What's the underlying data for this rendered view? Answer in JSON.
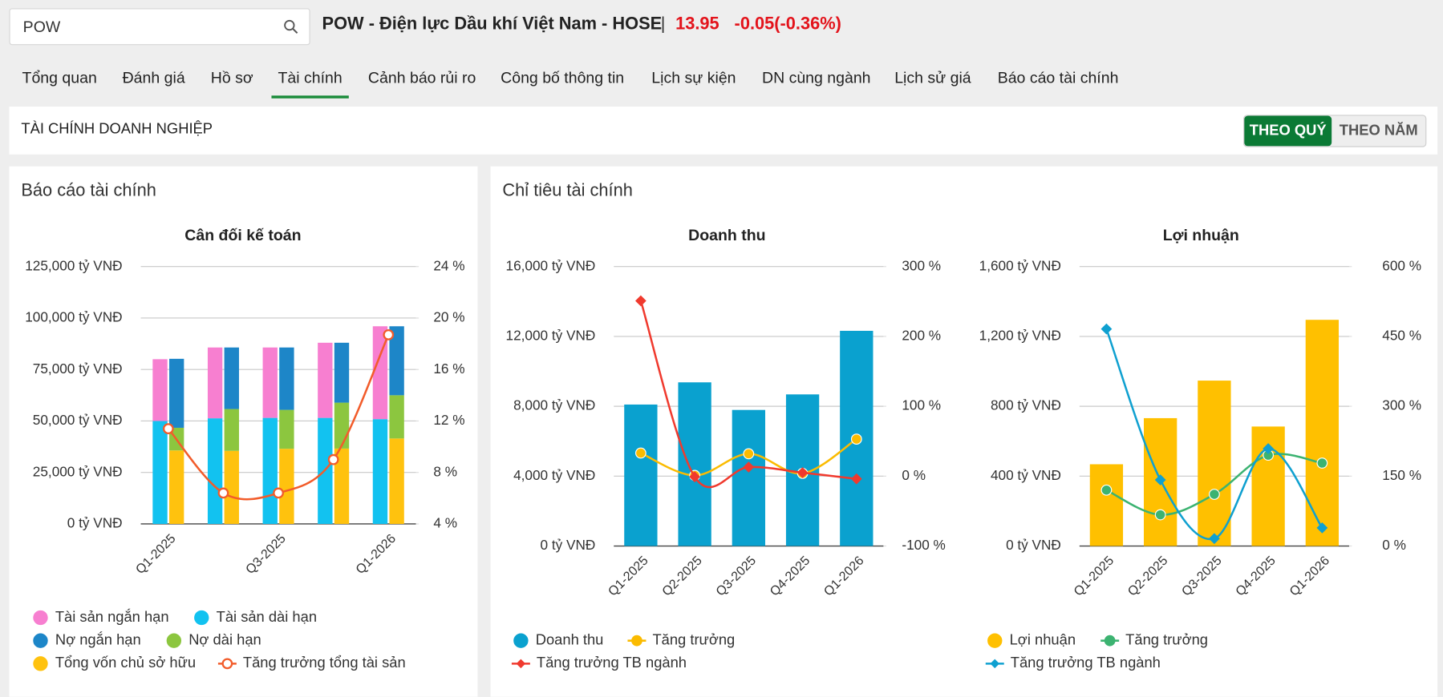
{
  "search": {
    "value": "POW"
  },
  "header": {
    "title": "POW - Điện lực Dầu khí Việt Nam - HOSE",
    "price": "13.95",
    "change": "-0.05(-0.36%)"
  },
  "tabs": [
    "Tổng quan",
    "Đánh giá",
    "Hồ sơ",
    "Tài chính",
    "Cảnh báo rủi ro",
    "Công bố thông tin",
    "Lịch sự kiện",
    "DN cùng ngành",
    "Lịch sử giá",
    "Báo cáo tài chính"
  ],
  "section": {
    "title": "TÀI CHÍNH DOANH NGHIỆP",
    "toggles": [
      "THEO QUÝ",
      "THEO NĂM"
    ]
  },
  "panels": [
    "Báo cáo tài chính",
    "Chỉ tiêu tài chính"
  ],
  "chart_data": [
    {
      "type": "bar",
      "title": "Cân đối kế toán",
      "categories": [
        "Q1-2025",
        null,
        "Q3-2025",
        null,
        "Q1-2026"
      ],
      "ylim": [
        0,
        125000
      ],
      "yticks": [
        {
          "value": 0,
          "label": "0 tỷ VNĐ"
        },
        {
          "value": 25000,
          "label": "25,000 tỷ VNĐ"
        },
        {
          "value": 50000,
          "label": "50,000 tỷ VNĐ"
        },
        {
          "value": 75000,
          "label": "75,000 tỷ VNĐ"
        },
        {
          "value": 100000,
          "label": "100,000 tỷ VNĐ"
        },
        {
          "value": 125000,
          "label": "125,000 tỷ VNĐ"
        }
      ],
      "y2lim": [
        4,
        24
      ],
      "y2ticks": [
        {
          "value": 4,
          "label": "4 %"
        },
        {
          "value": 8,
          "label": "8 %"
        },
        {
          "value": 12,
          "label": "12 %"
        },
        {
          "value": 16,
          "label": "16 %"
        },
        {
          "value": 20,
          "label": "20 %"
        },
        {
          "value": 24,
          "label": "24 %"
        }
      ],
      "series": [
        {
          "name": "Tài sản ngắn hạn",
          "type": "bar",
          "group": "left",
          "color": "#f77fd0",
          "values": [
            30000,
            34400,
            34200,
            36500,
            45100
          ]
        },
        {
          "name": "Tài sản dài hạn",
          "type": "bar",
          "group": "left",
          "color": "#12c2f0",
          "values": [
            50000,
            51300,
            51500,
            51500,
            50900
          ]
        },
        {
          "name": "Nợ ngắn hạn",
          "type": "bar",
          "group": "right",
          "color": "#1d86c8",
          "values": [
            33500,
            29900,
            30300,
            29100,
            33500
          ]
        },
        {
          "name": "Nợ dài hạn",
          "type": "bar",
          "group": "right",
          "color": "#8cc63f",
          "values": [
            11000,
            20300,
            18900,
            22300,
            21000
          ]
        },
        {
          "name": "Tổng vốn chủ sở hữu",
          "type": "bar",
          "group": "right",
          "color": "#ffc20e",
          "values": [
            35700,
            35500,
            36500,
            36600,
            41500
          ]
        },
        {
          "name": "Tăng trưởng tổng tài sản",
          "type": "line",
          "axis": "y2",
          "marker": "hollow-circle",
          "color": "#f25c2b",
          "values": [
            11.4,
            6.4,
            6.4,
            9.0,
            18.7
          ]
        }
      ]
    },
    {
      "type": "bar",
      "title": "Doanh thu",
      "categories": [
        "Q1-2025",
        "Q2-2025",
        "Q3-2025",
        "Q4-2025",
        "Q1-2026"
      ],
      "ylim": [
        0,
        16000
      ],
      "yticks": [
        {
          "value": 0,
          "label": "0 tỷ VNĐ"
        },
        {
          "value": 4000,
          "label": "4,000 tỷ VNĐ"
        },
        {
          "value": 8000,
          "label": "8,000 tỷ VNĐ"
        },
        {
          "value": 12000,
          "label": "12,000 tỷ VNĐ"
        },
        {
          "value": 16000,
          "label": "16,000 tỷ VNĐ"
        }
      ],
      "y2lim": [
        -100,
        300
      ],
      "y2ticks": [
        {
          "value": -100,
          "label": "-100 %"
        },
        {
          "value": 0,
          "label": "0 %"
        },
        {
          "value": 100,
          "label": "100 %"
        },
        {
          "value": 200,
          "label": "200 %"
        },
        {
          "value": 300,
          "label": "300 %"
        }
      ],
      "series": [
        {
          "name": "Doanh thu",
          "type": "bar",
          "color": "#0aa1cf",
          "values": [
            8100,
            9370,
            7790,
            8680,
            12320
          ]
        },
        {
          "name": "Tăng trưởng",
          "type": "line",
          "axis": "y2",
          "marker": "circle",
          "color": "#fbbb00",
          "values": [
            33,
            1,
            32,
            4,
            53
          ]
        },
        {
          "name": "Tăng trưởng TB ngành",
          "type": "line",
          "axis": "y2",
          "marker": "diamond",
          "color": "#f03a2e",
          "values": [
            251,
            -1,
            13,
            5,
            -4
          ]
        }
      ]
    },
    {
      "type": "bar",
      "title": "Lợi nhuận",
      "categories": [
        "Q1-2025",
        "Q2-2025",
        "Q3-2025",
        "Q4-2025",
        "Q1-2026"
      ],
      "ylim": [
        0,
        1600
      ],
      "yticks": [
        {
          "value": 0,
          "label": "0 tỷ VNĐ"
        },
        {
          "value": 400,
          "label": "400 tỷ VNĐ"
        },
        {
          "value": 800,
          "label": "800 tỷ VNĐ"
        },
        {
          "value": 1200,
          "label": "1,200 tỷ VNĐ"
        },
        {
          "value": 1600,
          "label": "1,600 tỷ VNĐ"
        }
      ],
      "y2lim": [
        0,
        600
      ],
      "y2ticks": [
        {
          "value": 0,
          "label": "0 %"
        },
        {
          "value": 150,
          "label": "150 %"
        },
        {
          "value": 300,
          "label": "300 %"
        },
        {
          "value": 450,
          "label": "450 %"
        },
        {
          "value": 600,
          "label": "600 %"
        }
      ],
      "series": [
        {
          "name": "Lợi nhuận",
          "type": "bar",
          "color": "#ffc000",
          "values": [
            468,
            732,
            947,
            684,
            1295
          ]
        },
        {
          "name": "Tăng trưởng",
          "type": "line",
          "axis": "y2",
          "marker": "circle",
          "color": "#3cb371",
          "values": [
            120,
            67,
            111,
            195,
            178
          ]
        },
        {
          "name": "Tăng trưởng TB ngành",
          "type": "line",
          "axis": "y2",
          "marker": "diamond",
          "color": "#0fa0d0",
          "values": [
            466,
            142,
            16,
            209,
            39
          ]
        }
      ]
    }
  ]
}
